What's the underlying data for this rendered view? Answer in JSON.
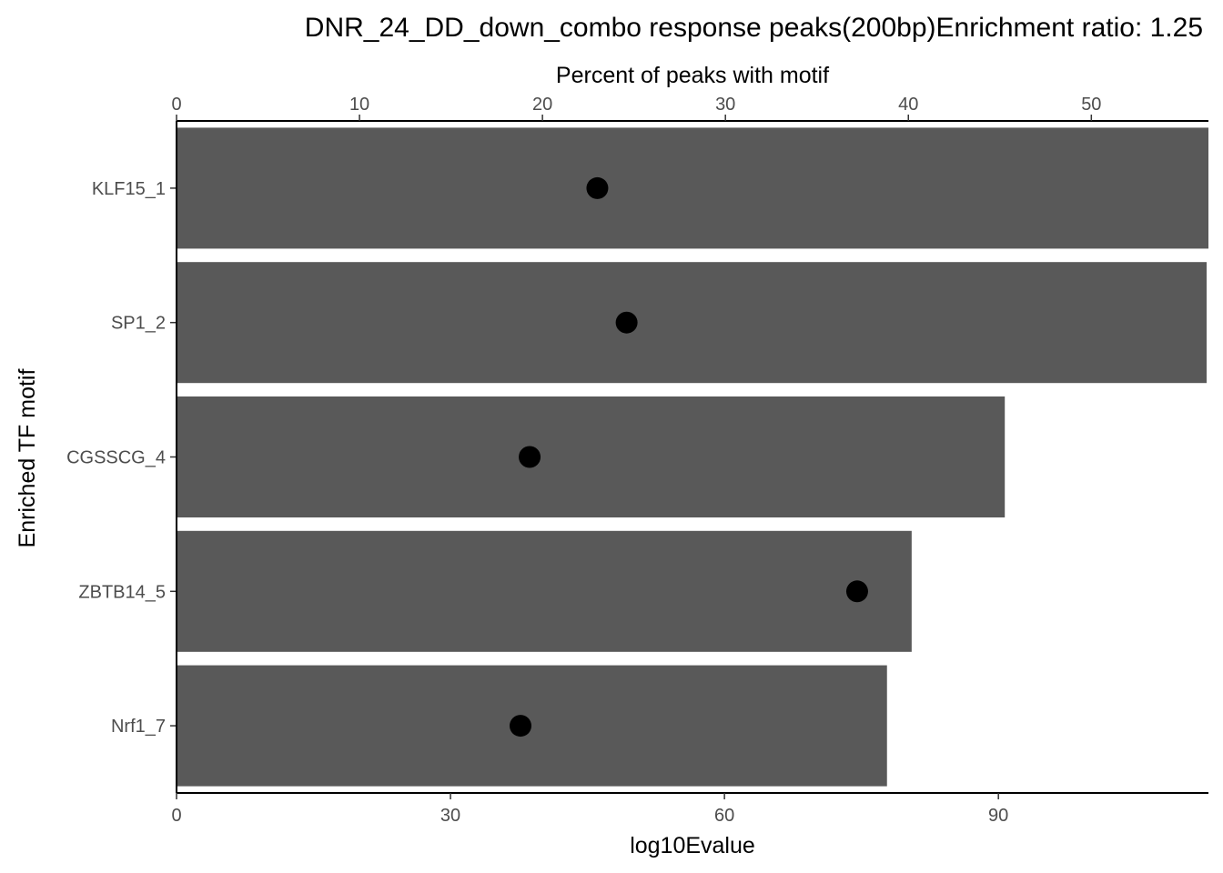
{
  "chart_data": {
    "type": "bar",
    "title": "DNR_24_DD_down_combo response peaks(200bp)Enrichment ratio: 1.25",
    "xlabel": "log10Evalue",
    "x2label": "Percent of peaks with motif",
    "ylabel": "Enriched TF motif",
    "orientation": "horizontal",
    "categories": [
      "KLF15_1",
      "SP1_2",
      "CGSSCG_4",
      "ZBTB14_5",
      "Nrf1_7"
    ],
    "series": [
      {
        "values": [
          113.0,
          112.8,
          90.7,
          80.5,
          77.8
        ]
      },
      {
        "values": [
          23.0,
          24.6,
          19.3,
          37.2,
          18.8
        ]
      }
    ],
    "xlim": [
      0,
      113.0
    ],
    "x2lim": [
      0,
      56.4
    ],
    "xticks": [
      0,
      30,
      60,
      90
    ],
    "x2ticks": [
      0,
      10,
      20,
      30,
      40,
      50
    ],
    "bar_color": "#595959",
    "point_color": "#000000",
    "grid": false
  }
}
